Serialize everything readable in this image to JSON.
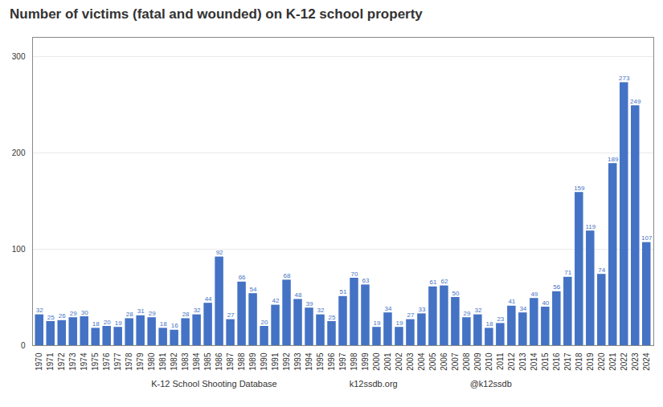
{
  "chart_data": {
    "type": "bar",
    "title": "Number of victims (fatal and wounded) on K-12 school property",
    "categories": [
      "1970",
      "1971",
      "1972",
      "1973",
      "1974",
      "1975",
      "1976",
      "1977",
      "1978",
      "1979",
      "1980",
      "1981",
      "1982",
      "1983",
      "1984",
      "1985",
      "1986",
      "1987",
      "1988",
      "1989",
      "1990",
      "1991",
      "1992",
      "1993",
      "1994",
      "1995",
      "1996",
      "1997",
      "1998",
      "1999",
      "2000",
      "2001",
      "2002",
      "2003",
      "2004",
      "2005",
      "2006",
      "2007",
      "2008",
      "2009",
      "2010",
      "2011",
      "2012",
      "2013",
      "2014",
      "2015",
      "2016",
      "2017",
      "2018",
      "2019",
      "2020",
      "2021",
      "2022",
      "2023",
      "2024"
    ],
    "values": [
      32,
      25,
      26,
      29,
      30,
      18,
      20,
      19,
      28,
      31,
      29,
      18,
      16,
      28,
      32,
      44,
      92,
      27,
      66,
      54,
      20,
      42,
      68,
      48,
      39,
      32,
      25,
      51,
      70,
      63,
      19,
      34,
      19,
      27,
      33,
      61,
      62,
      50,
      29,
      32,
      18,
      23,
      41,
      34,
      49,
      40,
      56,
      71,
      159,
      119,
      74,
      189,
      273,
      249,
      107
    ],
    "color": "#4472c4",
    "ylim": [
      0,
      320
    ],
    "yticks": [
      0,
      100,
      200,
      300
    ],
    "grid": true,
    "data_labels": true,
    "annotations": [
      "K-12 School Shooting Database",
      "k12ssdb.org",
      "@k12ssdb"
    ]
  }
}
